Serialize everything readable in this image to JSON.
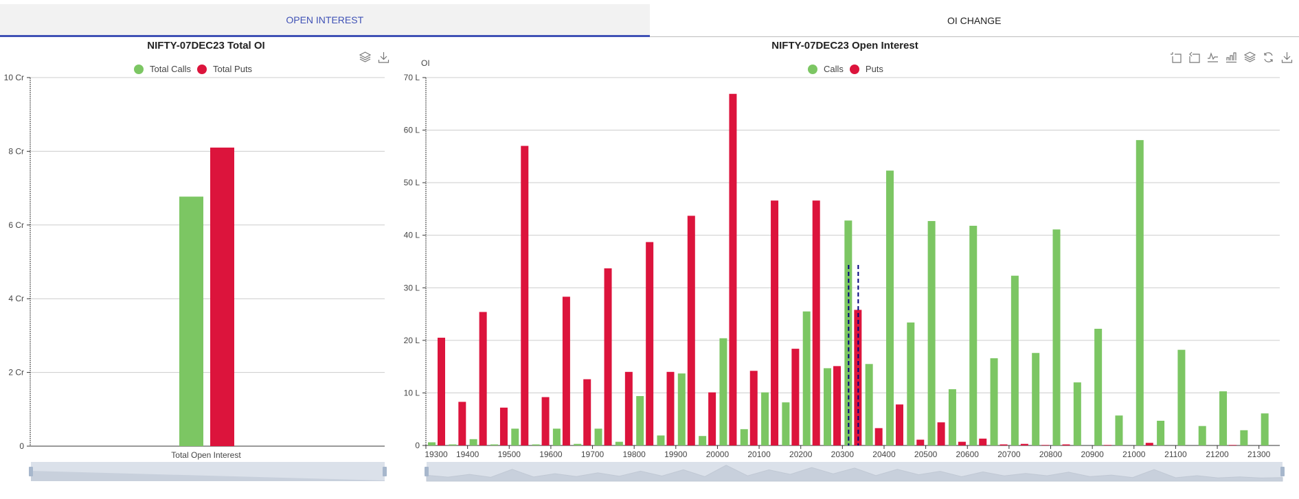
{
  "tabs": [
    {
      "label": "OPEN INTEREST",
      "active": true
    },
    {
      "label": "OI CHANGE",
      "active": false
    }
  ],
  "colors": {
    "calls": "#7cc663",
    "puts": "#dc143c",
    "accent": "#3f51b5",
    "marker": "#000080",
    "dataZoomBg": "#dbe1ea"
  },
  "left_chart": {
    "title": "NIFTY-07DEC23 Total OI",
    "legend": [
      "Total Calls",
      "Total Puts"
    ],
    "toolbox": [
      "stack-icon",
      "download-icon"
    ],
    "x_category": "Total Open Interest",
    "y_ticks": [
      "0",
      "2 Cr",
      "4 Cr",
      "6 Cr",
      "8 Cr",
      "10 Cr"
    ]
  },
  "right_chart": {
    "title": "NIFTY-07DEC23 Open Interest",
    "y_axis_name": "OI",
    "legend": [
      "Calls",
      "Puts"
    ],
    "toolbox": [
      "zoom-icon",
      "zoom-reset-icon",
      "line-chart-icon",
      "bar-chart-icon",
      "stack-icon",
      "restore-icon",
      "download-icon"
    ],
    "y_ticks": [
      "0",
      "10 L",
      "20 L",
      "30 L",
      "40 L",
      "50 L",
      "60 L",
      "70 L"
    ],
    "x_tick_labels": [
      "19300",
      "19400",
      "19500",
      "19600",
      "19700",
      "19800",
      "19900",
      "20000",
      "20100",
      "20200",
      "20300",
      "20400",
      "20500",
      "20600",
      "20700",
      "20800",
      "20900",
      "21000",
      "21100",
      "21200",
      "21300"
    ]
  },
  "chart_data": [
    {
      "type": "bar",
      "title": "NIFTY-07DEC23 Total OI",
      "categories": [
        "Total Open Interest"
      ],
      "series": [
        {
          "name": "Total Calls",
          "values": [
            6.77
          ]
        },
        {
          "name": "Total Puts",
          "values": [
            8.1
          ]
        }
      ],
      "xlabel": "",
      "ylabel": "",
      "unit": "Cr",
      "ylim": [
        0,
        10
      ],
      "y_ticks": [
        0,
        2,
        4,
        6,
        8,
        10
      ],
      "grid": true,
      "legend_position": "top"
    },
    {
      "type": "bar",
      "title": "NIFTY-07DEC23 Open Interest",
      "categories": [
        19300,
        19350,
        19400,
        19450,
        19500,
        19550,
        19600,
        19650,
        19700,
        19750,
        19800,
        19850,
        19900,
        19950,
        20000,
        20050,
        20100,
        20150,
        20200,
        20250,
        20300,
        20350,
        20400,
        20450,
        20500,
        20550,
        20600,
        20650,
        20700,
        20750,
        20800,
        20850,
        20900,
        20950,
        21000,
        21050,
        21100,
        21150,
        21200,
        21250,
        21300
      ],
      "series": [
        {
          "name": "Calls",
          "values": [
            0.6,
            0.2,
            1.2,
            0.2,
            3.2,
            0.2,
            3.2,
            0.3,
            3.2,
            0.7,
            9.4,
            1.9,
            13.7,
            1.8,
            20.4,
            3.1,
            10.1,
            8.2,
            25.5,
            14.7,
            42.8,
            15.5,
            52.3,
            23.4,
            42.7,
            10.7,
            41.8,
            16.6,
            32.3,
            17.6,
            41.1,
            12.0,
            22.2,
            5.7,
            58.1,
            4.7,
            18.2,
            3.7,
            10.3,
            2.9,
            6.1
          ]
        },
        {
          "name": "Puts",
          "values": [
            20.5,
            8.3,
            25.4,
            7.2,
            57.0,
            9.2,
            28.3,
            12.6,
            33.7,
            14.0,
            38.7,
            14.0,
            43.7,
            10.1,
            66.9,
            14.2,
            46.6,
            18.4,
            46.6,
            15.1,
            25.8,
            3.3,
            7.8,
            1.1,
            4.4,
            0.7,
            1.3,
            0.2,
            0.3,
            0.1,
            0.2,
            0.0,
            0.1,
            0.0,
            0.5,
            0.0,
            0.0,
            0.0,
            0.1,
            0.0,
            0.0
          ]
        }
      ],
      "xlabel": "",
      "ylabel": "OI",
      "unit": "L",
      "ylim": [
        0,
        70
      ],
      "y_ticks": [
        0,
        10,
        20,
        30,
        40,
        50,
        60,
        70
      ],
      "grid": true,
      "legend_position": "top",
      "annotations": [
        "dashed marker lines at strike 20300 (spot/ATM)"
      ]
    }
  ]
}
